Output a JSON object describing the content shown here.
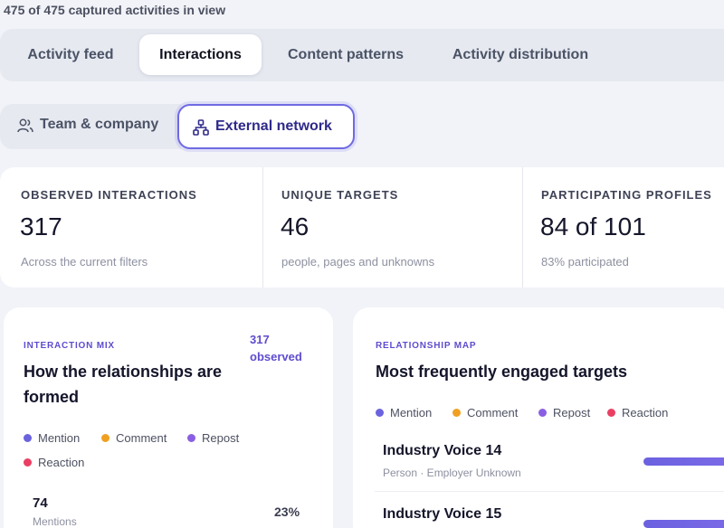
{
  "summary": "475 of 475 captured activities in view",
  "tabs": [
    {
      "label": "Activity feed"
    },
    {
      "label": "Interactions"
    },
    {
      "label": "Content patterns"
    },
    {
      "label": "Activity distribution"
    }
  ],
  "subtabs": {
    "team": "Team & company",
    "external": "External network"
  },
  "stats": [
    {
      "label": "OBSERVED INTERACTIONS",
      "value": "317",
      "note": "Across the current filters"
    },
    {
      "label": "UNIQUE TARGETS",
      "value": "46",
      "note": "people, pages and unknowns"
    },
    {
      "label": "PARTICIPATING PROFILES",
      "value": "84 of 101",
      "note": "83% participated"
    }
  ],
  "mix": {
    "eyebrow": "INTERACTION MIX",
    "title": "How the relationships are formed",
    "observed_count": "317",
    "observed_label": "observed",
    "legend": [
      {
        "label": "Mention",
        "color": "#6b63de"
      },
      {
        "label": "Comment",
        "color": "#f0a020"
      },
      {
        "label": "Repost",
        "color": "#8b5fe3"
      },
      {
        "label": "Reaction",
        "color": "#ea3f63"
      }
    ],
    "first_row": {
      "count": "74",
      "label": "Mentions",
      "percent": "23%"
    }
  },
  "map": {
    "eyebrow": "RELATIONSHIP MAP",
    "title": "Most frequently engaged targets",
    "legend": [
      {
        "label": "Mention",
        "color": "#6b63de"
      },
      {
        "label": "Comment",
        "color": "#f0a020"
      },
      {
        "label": "Repost",
        "color": "#8b5fe3"
      },
      {
        "label": "Reaction",
        "color": "#ea3f63"
      }
    ],
    "targets": [
      {
        "name": "Industry Voice 14",
        "sub": "Person · Employer Unknown"
      },
      {
        "name": "Industry Voice 15",
        "sub": ""
      }
    ]
  }
}
